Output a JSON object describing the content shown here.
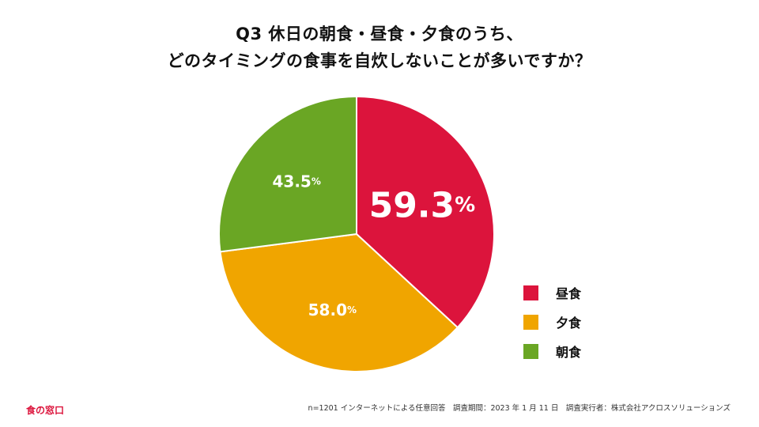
{
  "title": {
    "line1": "Q3 休日の朝食・昼食・夕食のうち、",
    "line2": "どのタイミングの食事を自炊しないことが多いですか？"
  },
  "chart_data": {
    "type": "pie",
    "title": "Q3 休日の朝食・昼食・夕食のうち、どのタイミングの食事を自炊しないことが多いですか？",
    "categories": [
      "昼食",
      "夕食",
      "朝食"
    ],
    "values": [
      59.3,
      58.0,
      43.5
    ],
    "value_labels": [
      "59.3",
      "58.0",
      "43.5"
    ],
    "unit": "%",
    "colors": [
      "#dc143c",
      "#f0a500",
      "#6aa624"
    ],
    "legend_position": "right"
  },
  "legend": {
    "items": [
      {
        "label": "昼食",
        "color": "#dc143c"
      },
      {
        "label": "夕食",
        "color": "#f0a500"
      },
      {
        "label": "朝食",
        "color": "#6aa624"
      }
    ]
  },
  "footer": {
    "logo": "食の窓口",
    "note": "n=1201 インターネットによる任意回答　調査期間：2023 年 1 月 11 日　調査実行者：株式会社アクロスソリューションズ"
  }
}
